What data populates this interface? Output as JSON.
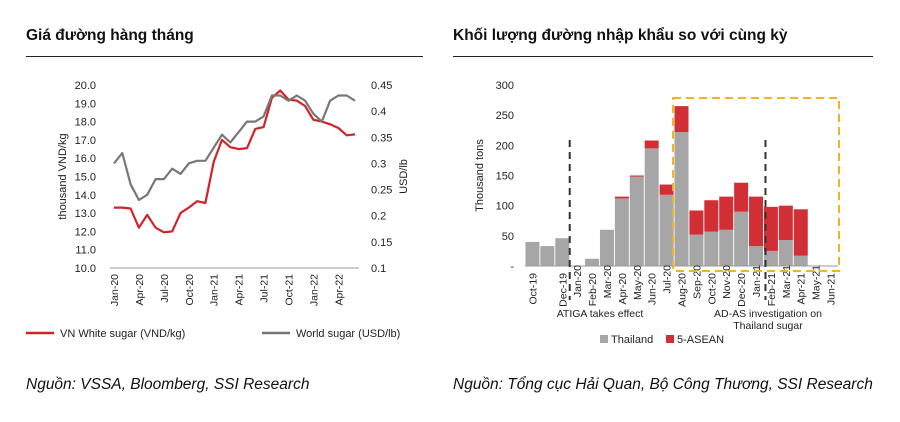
{
  "left_panel": {
    "title": "Giá đường hàng tháng",
    "source": "Nguồn: VSSA, Bloomberg, SSI Research"
  },
  "right_panel": {
    "title": "Khối lượng đường nhập khẩu so với cùng kỳ",
    "source": "Nguồn: Tổng cục Hải Quan, Bộ Công Thương, SSI Research"
  },
  "colors": {
    "vn": "#d2232a",
    "world": "#777777",
    "thailand": "#a6a6a6",
    "asean": "#d12e36",
    "annotation": "#f2b320"
  },
  "chart_data": [
    {
      "type": "line",
      "x": [
        "Jan-20",
        "Feb-20",
        "Mar-20",
        "Apr-20",
        "May-20",
        "Jun-20",
        "Jul-20",
        "Aug-20",
        "Sep-20",
        "Oct-20",
        "Nov-20",
        "Dec-20",
        "Jan-21",
        "Feb-21",
        "Mar-21",
        "Apr-21",
        "May-21",
        "Jun-21",
        "Jul-21",
        "Aug-21",
        "Sep-21",
        "Oct-21",
        "Nov-21",
        "Dec-21",
        "Jan-22",
        "Feb-22",
        "Mar-22",
        "Apr-22",
        "May-22",
        "Jun-22"
      ],
      "x_tick_labels": [
        "Jan-20",
        "Apr-20",
        "Jul-20",
        "Oct-20",
        "Jan-21",
        "Apr-21",
        "Jul-21",
        "Oct-21",
        "Jan-22",
        "Apr-22"
      ],
      "ylabel": "thousand VND/kg",
      "ylabel_right": "USD/lb",
      "ylim": [
        10.0,
        20.0
      ],
      "yticks": [
        "10.0",
        "11.0",
        "12.0",
        "13.0",
        "14.0",
        "15.0",
        "16.0",
        "17.0",
        "18.0",
        "19.0",
        "20.0"
      ],
      "ylim_right": [
        0.1,
        0.45
      ],
      "yticks_right": [
        "0.1",
        "0.15",
        "0.2",
        "0.25",
        "0.3",
        "0.35",
        "0.4",
        "0.45"
      ],
      "series": [
        {
          "name": "VN White sugar (VND/kg)",
          "axis": "left",
          "values": [
            13.3,
            13.3,
            13.25,
            12.2,
            12.9,
            12.2,
            11.95,
            12.0,
            13.0,
            13.3,
            13.65,
            13.55,
            15.8,
            17.0,
            16.6,
            16.5,
            16.55,
            17.6,
            17.7,
            19.3,
            19.7,
            19.2,
            19.15,
            18.85,
            18.1,
            18.0,
            17.85,
            17.65,
            17.25,
            17.3
          ]
        },
        {
          "name": "World sugar (USD/lb)",
          "axis": "right",
          "values": [
            0.3,
            0.32,
            0.26,
            0.23,
            0.24,
            0.27,
            0.27,
            0.29,
            0.28,
            0.3,
            0.305,
            0.305,
            0.33,
            0.355,
            0.34,
            0.36,
            0.38,
            0.38,
            0.39,
            0.43,
            0.43,
            0.42,
            0.43,
            0.42,
            0.395,
            0.38,
            0.42,
            0.43,
            0.43,
            0.42
          ]
        }
      ]
    },
    {
      "type": "bar",
      "stacked": true,
      "ylabel": "Thousand tons",
      "ylim": [
        0,
        300
      ],
      "yticks": [
        "-",
        "50",
        "100",
        "150",
        "200",
        "250",
        "300"
      ],
      "categories": [
        "Oct-19",
        "Nov-19",
        "Dec-19",
        "Jan-20",
        "Feb-20",
        "Mar-20",
        "Apr-20",
        "May-20",
        "Jun-20",
        "Jul-20",
        "Aug-20",
        "Sep-20",
        "Oct-20",
        "Nov-20",
        "Dec-20",
        "Jan-21",
        "Feb-21",
        "Mar-21",
        "Apr-21",
        "May-21",
        "Jun-21"
      ],
      "x_tick_labels": [
        "Oct-19",
        "Dec-19",
        "Feb-20",
        "Apr-20",
        "Jun-20",
        "Aug-20",
        "Oct-20",
        "Dec-20",
        "Feb-21",
        "Apr-21",
        "Jun-21"
      ],
      "x_tick_labels_minor": [
        "Jan-20",
        "Mar-20",
        "May-20",
        "Jul-20",
        "Sep-20",
        "Nov-20",
        "Jan-21",
        "Mar-21",
        "May-21"
      ],
      "series": [
        {
          "name": "Thailand",
          "values": [
            40,
            33,
            46,
            0,
            12,
            60,
            112,
            148,
            195,
            118,
            222,
            52,
            57,
            60,
            90,
            33,
            25,
            43,
            17,
            0,
            0
          ]
        },
        {
          "name": "5-ASEAN",
          "values": [
            0,
            0,
            0,
            0,
            0,
            0,
            3,
            2,
            13,
            17,
            43,
            40,
            52,
            55,
            48,
            82,
            73,
            57,
            77,
            0,
            0
          ]
        }
      ],
      "annotations": [
        "ATIGA takes effect",
        "AD-AS investigation on Thailand sugar"
      ]
    }
  ]
}
